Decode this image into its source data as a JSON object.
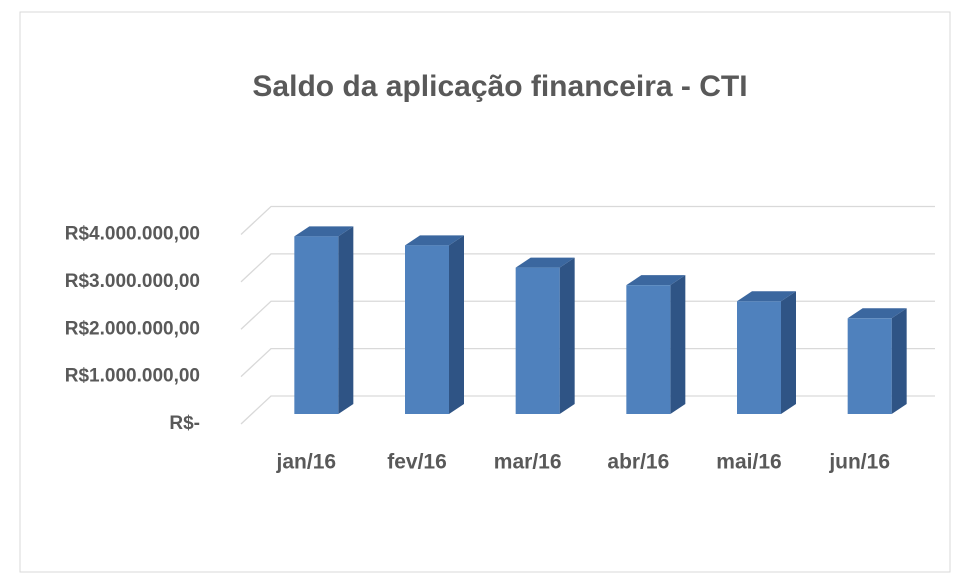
{
  "chart_data": {
    "type": "bar",
    "title": "Saldo da aplicação financeira - CTI",
    "categories": [
      "jan/16",
      "fev/16",
      "mar/16",
      "abr/16",
      "mai/16",
      "jun/16"
    ],
    "values": [
      3750000,
      3560000,
      3090000,
      2720000,
      2380000,
      2020000
    ],
    "color": "#4f81bd",
    "ylim": [
      0,
      4000000
    ],
    "yticks": [
      {
        "value": 0,
        "label": "R$-"
      },
      {
        "value": 1000000,
        "label": "R$1.000.000,00"
      },
      {
        "value": 2000000,
        "label": "R$2.000.000,00"
      },
      {
        "value": 3000000,
        "label": "R$3.000.000,00"
      },
      {
        "value": 4000000,
        "label": "R$4.000.000,00"
      }
    ],
    "grid": true
  }
}
